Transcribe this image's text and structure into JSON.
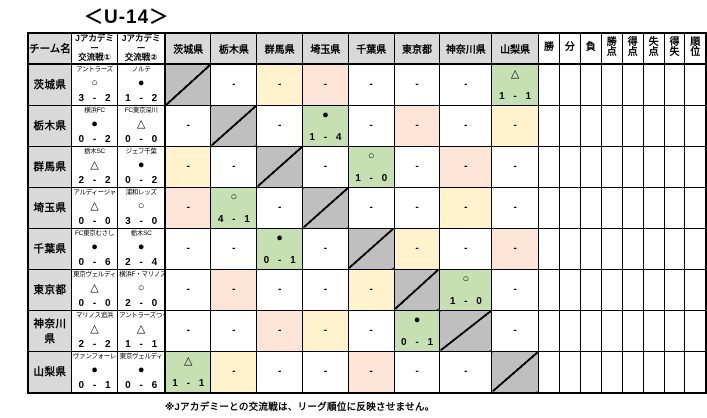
{
  "title": "＜U-14＞",
  "footer_note": "※Jアカデミーとの交流戦は、リーグ順位に反映させません。",
  "labels": {
    "empty_marker": "-"
  },
  "colors": {
    "header_gray": "#d9d9d9",
    "diagonal_gray": "#bfbfbf",
    "result_green": "#c6e0b4",
    "empty_yellow": "#fff2cc",
    "empty_pink": "#fce4d6",
    "border_black": "#000000"
  },
  "header": {
    "team_label": "チーム名",
    "academy": [
      [
        "Jアカデミー",
        "交流戦①"
      ],
      [
        "Jアカデミー",
        "交流戦②"
      ]
    ],
    "prefectures": [
      "茨城県",
      "栃木県",
      "群馬県",
      "埼玉県",
      "千葉県",
      "東京都",
      "神奈川県",
      "山梨県"
    ],
    "stats": [
      "勝",
      "分",
      "負",
      "勝点",
      "得点",
      "失点",
      "得失",
      "順位"
    ]
  },
  "rows": [
    {
      "team": "茨城県",
      "academy": [
        {
          "name": "アントラーズ",
          "symbol": "○",
          "score": "3 - 2"
        },
        {
          "name": "ノルテ",
          "symbol": "●",
          "score": "1 - 2"
        }
      ],
      "cells": [
        {
          "type": "diag"
        },
        {
          "type": "empty",
          "color": "white"
        },
        {
          "type": "empty",
          "color": "yellow"
        },
        {
          "type": "empty",
          "color": "pink"
        },
        {
          "type": "empty",
          "color": "white"
        },
        {
          "type": "empty",
          "color": "white"
        },
        {
          "type": "empty",
          "color": "white"
        },
        {
          "type": "result",
          "color": "green",
          "symbol": "△",
          "score": "1 - 1"
        }
      ],
      "stats": [
        "",
        "",
        "",
        "",
        "",
        "",
        "",
        ""
      ]
    },
    {
      "team": "栃木県",
      "academy": [
        {
          "name": "横浜FC",
          "symbol": "●",
          "score": "0 - 2"
        },
        {
          "name": "FC東京深川",
          "symbol": "△",
          "score": "0 - 0"
        }
      ],
      "cells": [
        {
          "type": "empty",
          "color": "white"
        },
        {
          "type": "diag"
        },
        {
          "type": "empty",
          "color": "white"
        },
        {
          "type": "result",
          "color": "green",
          "symbol": "●",
          "score": "1 - 4"
        },
        {
          "type": "empty",
          "color": "white"
        },
        {
          "type": "empty",
          "color": "pink"
        },
        {
          "type": "empty",
          "color": "white"
        },
        {
          "type": "empty",
          "color": "yellow"
        }
      ],
      "stats": [
        "",
        "",
        "",
        "",
        "",
        "",
        "",
        ""
      ]
    },
    {
      "team": "群馬県",
      "academy": [
        {
          "name": "栃木SC",
          "symbol": "△",
          "score": "2 - 2"
        },
        {
          "name": "ジェフ千葉",
          "symbol": "●",
          "score": "0 - 2"
        }
      ],
      "cells": [
        {
          "type": "empty",
          "color": "yellow"
        },
        {
          "type": "empty",
          "color": "white"
        },
        {
          "type": "diag"
        },
        {
          "type": "empty",
          "color": "white"
        },
        {
          "type": "result",
          "color": "green",
          "symbol": "○",
          "score": "1 - 0"
        },
        {
          "type": "empty",
          "color": "white"
        },
        {
          "type": "empty",
          "color": "pink"
        },
        {
          "type": "empty",
          "color": "white"
        }
      ],
      "stats": [
        "",
        "",
        "",
        "",
        "",
        "",
        "",
        ""
      ]
    },
    {
      "team": "埼玉県",
      "academy": [
        {
          "name": "アルディージャ",
          "symbol": "△",
          "score": "0 - 0"
        },
        {
          "name": "浦和レッズ",
          "symbol": "○",
          "score": "3 - 0"
        }
      ],
      "cells": [
        {
          "type": "empty",
          "color": "pink"
        },
        {
          "type": "result",
          "color": "green",
          "symbol": "○",
          "score": "4 - 1"
        },
        {
          "type": "empty",
          "color": "white"
        },
        {
          "type": "diag"
        },
        {
          "type": "empty",
          "color": "white"
        },
        {
          "type": "empty",
          "color": "white"
        },
        {
          "type": "empty",
          "color": "yellow"
        },
        {
          "type": "empty",
          "color": "white"
        }
      ],
      "stats": [
        "",
        "",
        "",
        "",
        "",
        "",
        "",
        ""
      ]
    },
    {
      "team": "千葉県",
      "academy": [
        {
          "name": "FC東京むさし",
          "symbol": "●",
          "score": "0 - 6"
        },
        {
          "name": "栃木SC",
          "symbol": "●",
          "score": "2 - 4"
        }
      ],
      "cells": [
        {
          "type": "empty",
          "color": "white"
        },
        {
          "type": "empty",
          "color": "white"
        },
        {
          "type": "result",
          "color": "green",
          "symbol": "●",
          "score": "0 - 1"
        },
        {
          "type": "empty",
          "color": "white"
        },
        {
          "type": "diag"
        },
        {
          "type": "empty",
          "color": "yellow"
        },
        {
          "type": "empty",
          "color": "white"
        },
        {
          "type": "empty",
          "color": "pink"
        }
      ],
      "stats": [
        "",
        "",
        "",
        "",
        "",
        "",
        "",
        ""
      ]
    },
    {
      "team": "東京都",
      "academy": [
        {
          "name": "東京ヴェルディ",
          "symbol": "△",
          "score": "0 - 0"
        },
        {
          "name": "横浜F・マリノス",
          "symbol": "○",
          "score": "2 - 0"
        }
      ],
      "cells": [
        {
          "type": "empty",
          "color": "white"
        },
        {
          "type": "empty",
          "color": "pink"
        },
        {
          "type": "empty",
          "color": "white"
        },
        {
          "type": "empty",
          "color": "white"
        },
        {
          "type": "empty",
          "color": "yellow"
        },
        {
          "type": "diag"
        },
        {
          "type": "result",
          "color": "green",
          "symbol": "○",
          "score": "1 - 0"
        },
        {
          "type": "empty",
          "color": "white"
        }
      ],
      "stats": [
        "",
        "",
        "",
        "",
        "",
        "",
        "",
        ""
      ]
    },
    {
      "team": "神奈川県",
      "academy": [
        {
          "name": "マリノス追浜",
          "symbol": "△",
          "score": "2 - 2"
        },
        {
          "name": "アントラーズつくば",
          "symbol": "△",
          "score": "1 - 1"
        }
      ],
      "cells": [
        {
          "type": "empty",
          "color": "white"
        },
        {
          "type": "empty",
          "color": "white"
        },
        {
          "type": "empty",
          "color": "pink"
        },
        {
          "type": "empty",
          "color": "yellow"
        },
        {
          "type": "empty",
          "color": "white"
        },
        {
          "type": "result",
          "color": "green",
          "symbol": "●",
          "score": "0 - 1"
        },
        {
          "type": "diag"
        },
        {
          "type": "empty",
          "color": "white"
        }
      ],
      "stats": [
        "",
        "",
        "",
        "",
        "",
        "",
        "",
        ""
      ]
    },
    {
      "team": "山梨県",
      "academy": [
        {
          "name": "ヴァンフォーレ",
          "symbol": "●",
          "score": "0 - 1"
        },
        {
          "name": "東京ヴェルディ",
          "symbol": "●",
          "score": "0 - 6"
        }
      ],
      "cells": [
        {
          "type": "result",
          "color": "green",
          "symbol": "△",
          "score": "1 - 1"
        },
        {
          "type": "empty",
          "color": "yellow"
        },
        {
          "type": "empty",
          "color": "white"
        },
        {
          "type": "empty",
          "color": "white"
        },
        {
          "type": "empty",
          "color": "pink"
        },
        {
          "type": "empty",
          "color": "white"
        },
        {
          "type": "empty",
          "color": "white"
        },
        {
          "type": "diag"
        }
      ],
      "stats": [
        "",
        "",
        "",
        "",
        "",
        "",
        "",
        ""
      ]
    }
  ]
}
